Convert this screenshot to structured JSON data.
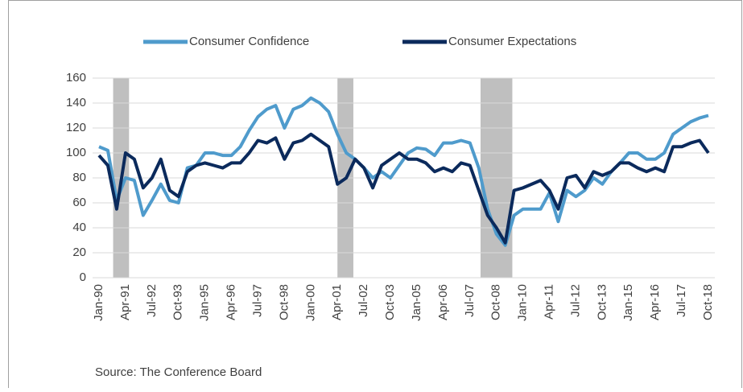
{
  "chart_data": {
    "type": "line",
    "source": "Source: The Conference Board",
    "categories": [
      "Jan-90",
      null,
      null,
      "Apr-91",
      null,
      null,
      "Jul-92",
      null,
      null,
      "Oct-93",
      null,
      null,
      "Jan-95",
      null,
      null,
      "Apr-96",
      null,
      null,
      "Jul-97",
      null,
      null,
      "Oct-98",
      null,
      null,
      "Jan-00",
      null,
      null,
      "Apr-01",
      null,
      null,
      "Jul-02",
      null,
      null,
      "Oct-03",
      null,
      null,
      "Jan-05",
      null,
      null,
      "Apr-06",
      null,
      null,
      "Jul-07",
      null,
      null,
      "Oct-08",
      null,
      null,
      "Jan-10",
      null,
      null,
      "Apr-11",
      null,
      null,
      "Jul-12",
      null,
      null,
      "Oct-13",
      null,
      null,
      "Jan-15",
      null,
      null,
      "Apr-16",
      null,
      null,
      "Jul-17",
      null,
      null,
      "Oct-18"
    ],
    "series": [
      {
        "name": "Consumer Confidence",
        "color": "#4f9bcc",
        "values": [
          105,
          102,
          62,
          80,
          78,
          50,
          62,
          75,
          62,
          60,
          88,
          90,
          100,
          100,
          98,
          98,
          105,
          118,
          129,
          135,
          138,
          120,
          135,
          138,
          144,
          140,
          133,
          115,
          100,
          95,
          88,
          80,
          85,
          80,
          90,
          100,
          104,
          103,
          98,
          108,
          108,
          110,
          108,
          88,
          55,
          35,
          26,
          50,
          55,
          55,
          55,
          68,
          45,
          70,
          65,
          70,
          80,
          75,
          85,
          92,
          100,
          100,
          95,
          95,
          100,
          115,
          120,
          125,
          128,
          130
        ]
      },
      {
        "name": "Consumer Expectations",
        "color": "#0b2a5c",
        "values": [
          98,
          90,
          55,
          100,
          95,
          72,
          80,
          95,
          70,
          65,
          85,
          90,
          92,
          90,
          88,
          92,
          92,
          100,
          110,
          108,
          112,
          95,
          108,
          110,
          115,
          110,
          105,
          75,
          80,
          95,
          88,
          72,
          90,
          95,
          100,
          95,
          95,
          92,
          85,
          88,
          85,
          92,
          90,
          70,
          50,
          40,
          28,
          70,
          72,
          75,
          78,
          70,
          55,
          80,
          82,
          72,
          85,
          82,
          85,
          92,
          92,
          88,
          85,
          88,
          85,
          105,
          105,
          108,
          110,
          100
        ]
      }
    ],
    "shaded_periods": [
      [
        1.6,
        3.4
      ],
      [
        27,
        28.8
      ],
      [
        43.2,
        46.8
      ]
    ],
    "ylim": [
      0,
      160
    ],
    "yticks": [
      0,
      20,
      40,
      60,
      80,
      100,
      120,
      140,
      160
    ],
    "grid": true,
    "legend": "top"
  }
}
